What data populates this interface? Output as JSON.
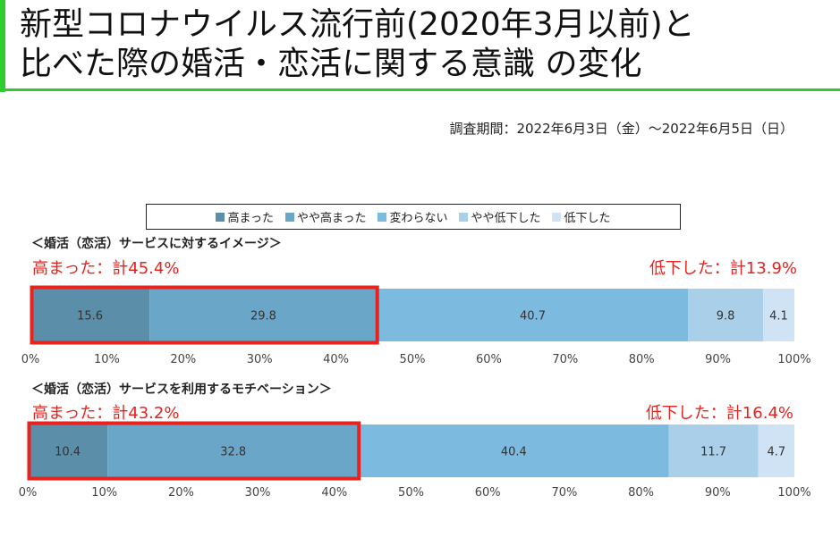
{
  "header": {
    "title_line1": "新型コロナウイルス流行前(2020年3月以前)と",
    "title_line2": "比べた際の婚活・恋活に関する意識 の変化",
    "survey_period": "調査期間：2022年6月3日（金）～2022年6月5日（日）"
  },
  "colors": {
    "accent_green": "#2ecc2e",
    "highlight_red": "#e8221c",
    "series": [
      "#5b8ea8",
      "#6aa6c7",
      "#7dbae0",
      "#a9cfe9",
      "#cfe3f4"
    ]
  },
  "annotations": [
    {
      "left": "高まった：計45.4%",
      "right": "低下した：計13.9%"
    },
    {
      "left": "高まった：計43.2%",
      "right": "低下した：計16.4%"
    }
  ],
  "chart_data": {
    "type": "bar",
    "orientation": "horizontal",
    "stacked": true,
    "categories": [
      "＜婚活（恋活）サービスに対するイメージ＞",
      "＜婚活（恋活）サービスを利用するモチベーション＞"
    ],
    "series": [
      {
        "name": "高まった",
        "values": [
          15.6,
          10.4
        ]
      },
      {
        "name": "やや高まった",
        "values": [
          29.8,
          32.8
        ]
      },
      {
        "name": "変わらない",
        "values": [
          40.7,
          40.4
        ]
      },
      {
        "name": "やや低下した",
        "values": [
          9.8,
          11.7
        ]
      },
      {
        "name": "低下した",
        "values": [
          4.1,
          4.7
        ]
      }
    ],
    "xlim": [
      0,
      100
    ],
    "x_ticks": [
      "0%",
      "10%",
      "20%",
      "30%",
      "40%",
      "50%",
      "60%",
      "70%",
      "80%",
      "90%",
      "100%"
    ],
    "legend_position": "top",
    "highlight_red_box": "first two segments of each bar"
  }
}
